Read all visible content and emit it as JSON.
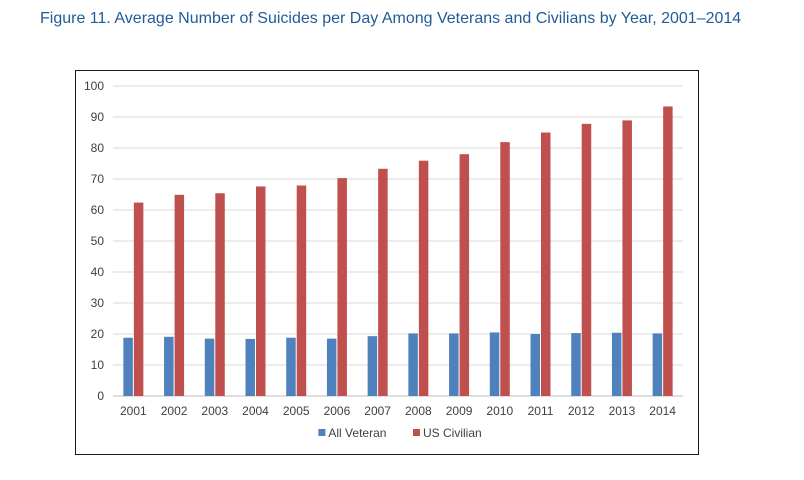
{
  "figure": {
    "title": "Figure 11. Average Number of Suicides per Day Among Veterans and Civilians by Year, 2001–2014"
  },
  "chart_data": {
    "type": "bar",
    "title": "Figure 11. Average Number of Suicides per Day Among Veterans and Civilians by Year, 2001–2014",
    "xlabel": "",
    "ylabel": "",
    "ylim": [
      0,
      100
    ],
    "yticks": [
      "0",
      "10",
      "20",
      "30",
      "40",
      "50",
      "60",
      "70",
      "80",
      "90",
      "100"
    ],
    "grid": true,
    "legend_position": "bottom",
    "categories": [
      "2001",
      "2002",
      "2003",
      "2004",
      "2005",
      "2006",
      "2007",
      "2008",
      "2009",
      "2010",
      "2011",
      "2012",
      "2013",
      "2014"
    ],
    "series": [
      {
        "name": "All Veteran",
        "color": "#4f81bd",
        "values": [
          18.8,
          19.1,
          18.5,
          18.4,
          18.8,
          18.5,
          19.3,
          20.2,
          20.2,
          20.5,
          20.0,
          20.3,
          20.4,
          20.2
        ]
      },
      {
        "name": "US Civilian",
        "color": "#c0504d",
        "values": [
          62.4,
          64.9,
          65.4,
          67.6,
          67.9,
          70.3,
          73.3,
          75.9,
          78.0,
          81.9,
          85.0,
          87.8,
          88.9,
          93.4
        ]
      }
    ]
  }
}
